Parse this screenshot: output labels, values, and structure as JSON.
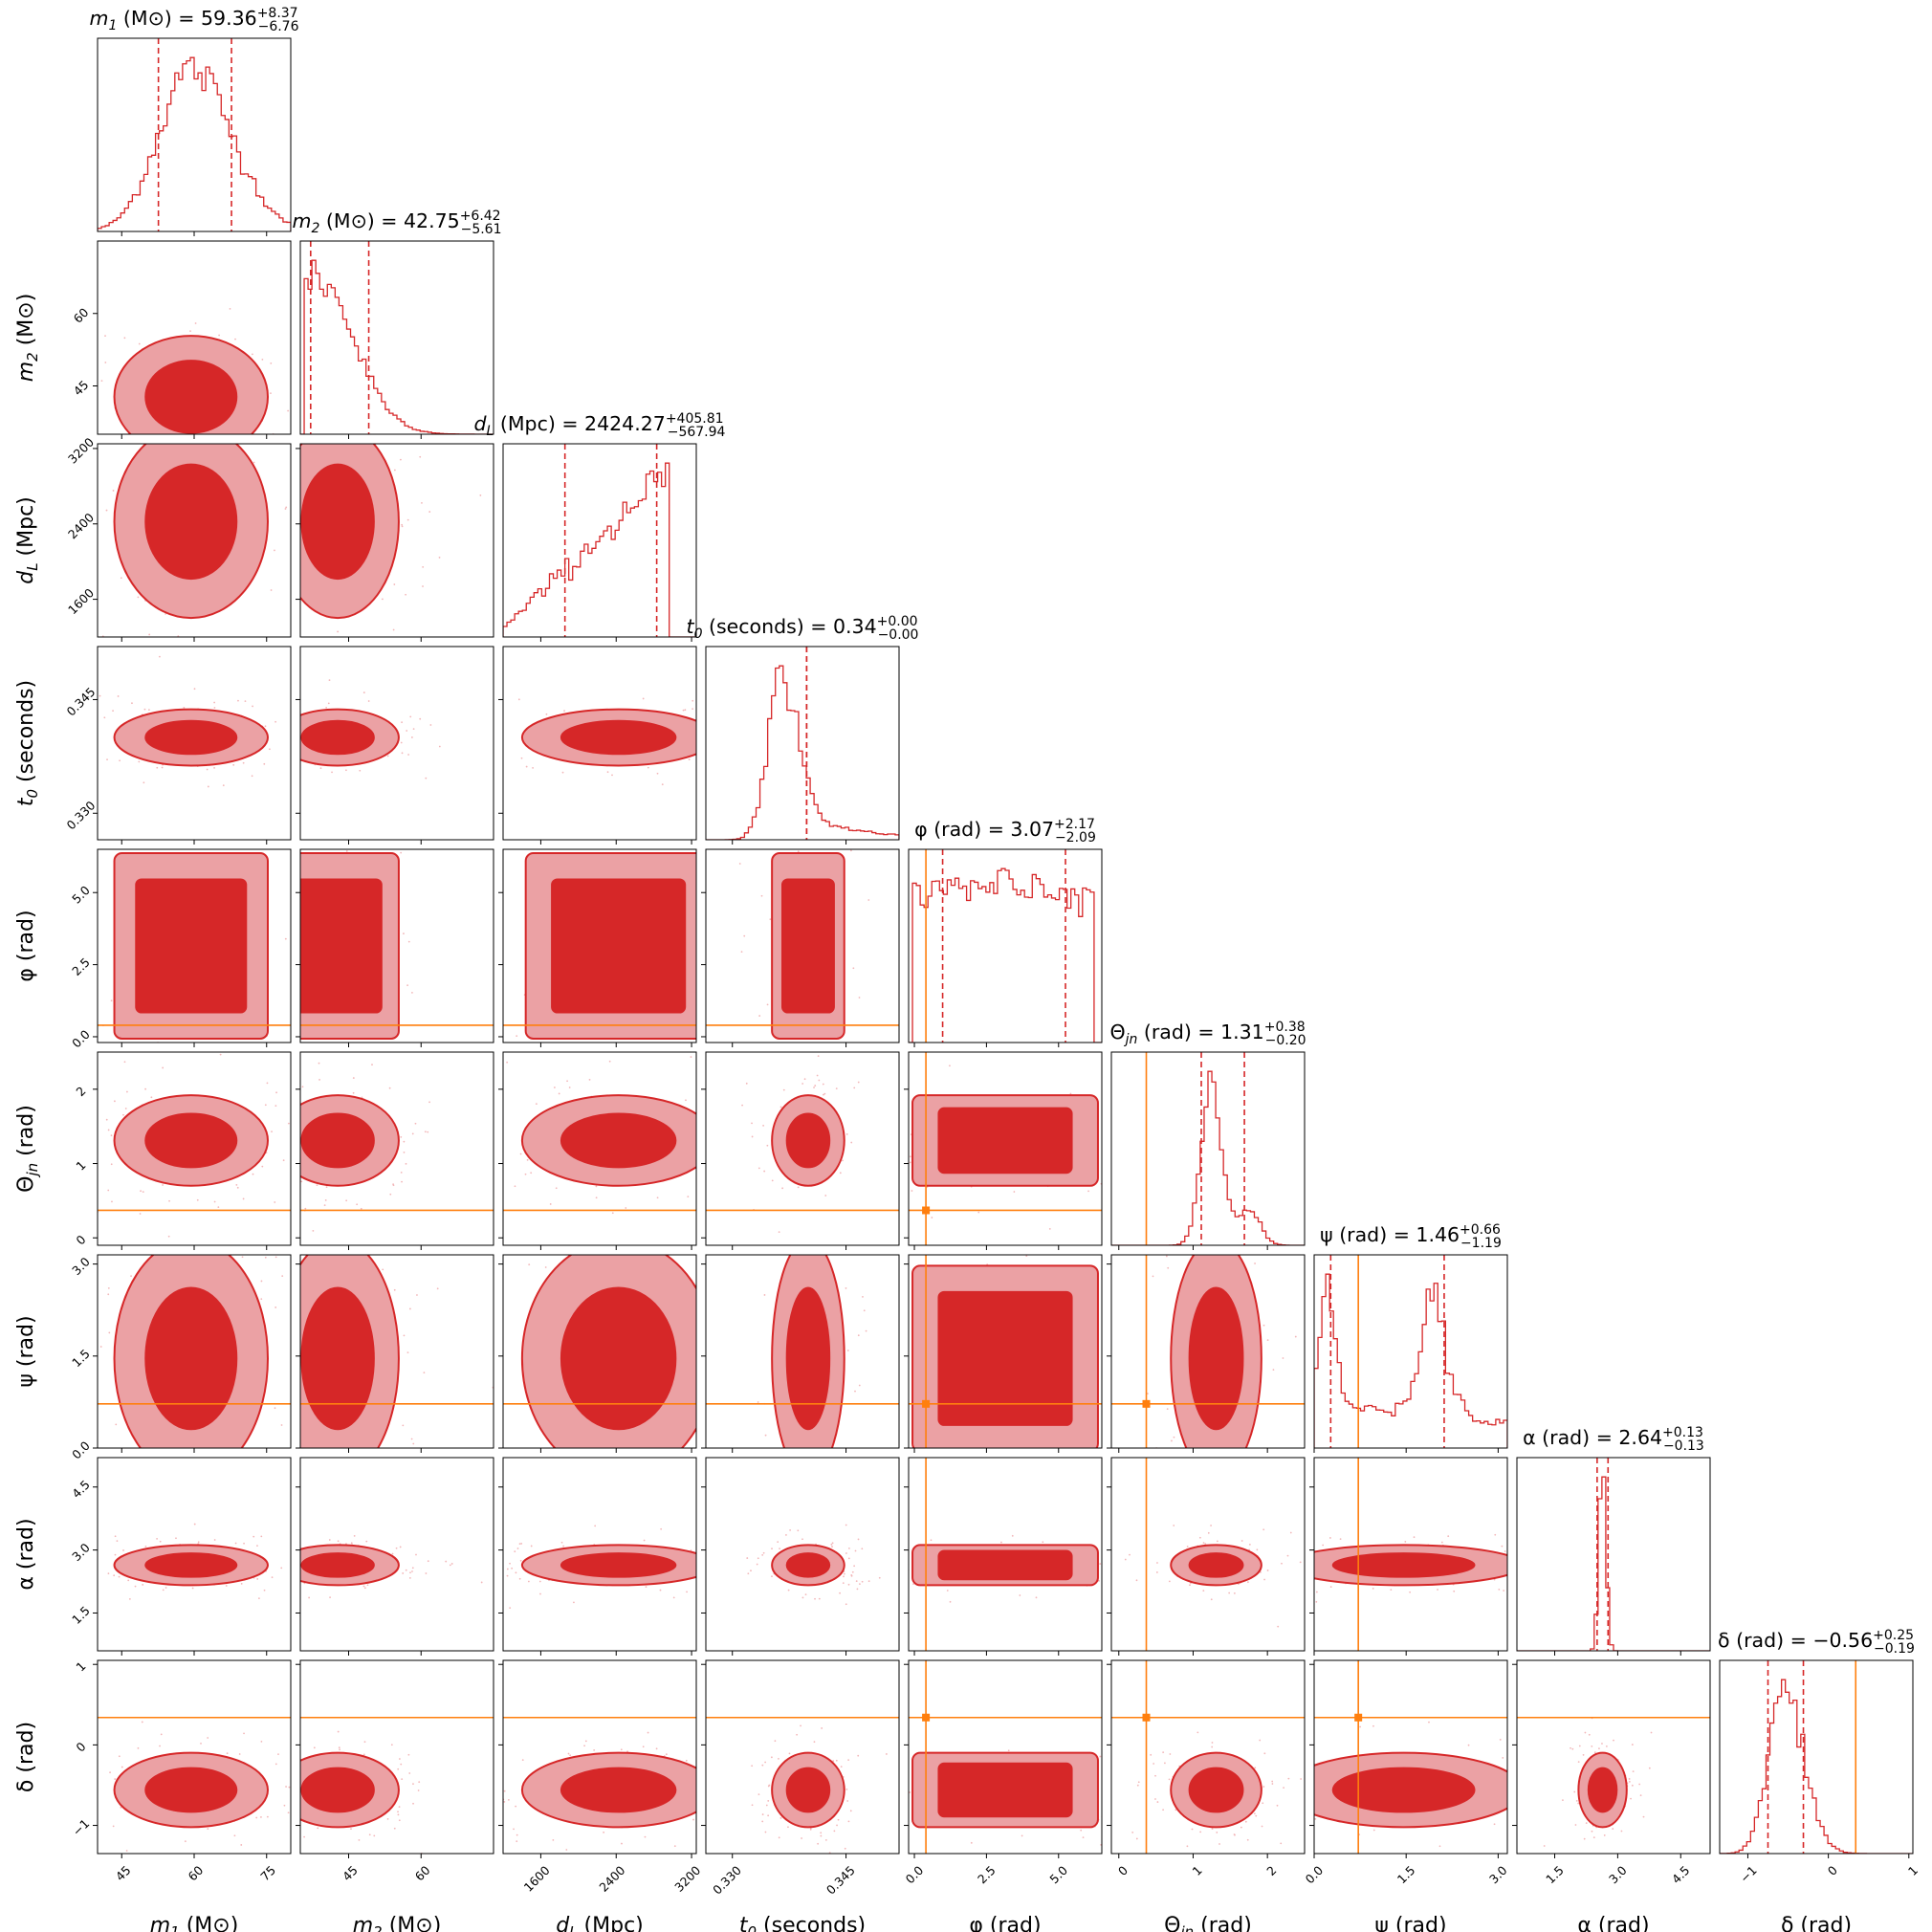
{
  "chart_data": {
    "type": "corner",
    "accent_color": "#d62728",
    "truth_color": "#ff7f0e",
    "parameters": [
      {
        "key": "m1",
        "label_sym": "m",
        "label_sub": "1",
        "label_unit": "(M⊙)",
        "median": 59.36,
        "plus": 8.37,
        "minus": 6.76,
        "title_value": "59.36",
        "title_plus": "+8.37",
        "title_minus": "−6.76",
        "range": [
          40,
          80
        ],
        "ticks": [
          45,
          60,
          75
        ],
        "tick_labels": [
          "45",
          "60",
          "75"
        ],
        "truth": null
      },
      {
        "key": "m2",
        "label_sym": "m",
        "label_sub": "2",
        "label_unit": "(M⊙)",
        "median": 42.75,
        "plus": 6.42,
        "minus": 5.61,
        "title_value": "42.75",
        "title_plus": "+6.42",
        "title_minus": "−5.61",
        "range": [
          35,
          75
        ],
        "ticks": [
          45,
          60
        ],
        "tick_labels": [
          "45",
          "60"
        ],
        "truth": null
      },
      {
        "key": "dL",
        "label_sym": "d",
        "label_sub": "L",
        "label_unit": "(Mpc)",
        "median": 2424.27,
        "plus": 405.81,
        "minus": 567.94,
        "title_value": "2424.27",
        "title_plus": "+405.81",
        "title_minus": "−567.94",
        "range": [
          1200,
          3250
        ],
        "ticks": [
          1600,
          2400,
          3200
        ],
        "tick_labels": [
          "1600",
          "2400",
          "3200"
        ],
        "truth": null
      },
      {
        "key": "t0",
        "label_sym": "t",
        "label_sub": "0",
        "label_unit": "(seconds)",
        "median": 0.34,
        "plus": 0.0,
        "minus": 0.0,
        "title_value": "0.34",
        "title_plus": "+0.00",
        "title_minus": "−0.00",
        "range": [
          0.3265,
          0.352
        ],
        "ticks": [
          0.33,
          0.345
        ],
        "tick_labels": [
          "0.330",
          "0.345"
        ],
        "truth": null
      },
      {
        "key": "phi",
        "label_sym": "φ",
        "label_sub": "",
        "label_unit": "(rad)",
        "median": 3.07,
        "plus": 2.17,
        "minus": 2.09,
        "title_value": "3.07",
        "title_plus": "+2.17",
        "title_minus": "−2.09",
        "range": [
          -0.2,
          6.5
        ],
        "ticks": [
          0.0,
          2.5,
          5.0
        ],
        "tick_labels": [
          "0.0",
          "2.5",
          "5.0"
        ],
        "truth": 0.4
      },
      {
        "key": "theta_jn",
        "label_sym": "Θ",
        "label_sub": "jn",
        "label_unit": "(rad)",
        "median": 1.31,
        "plus": 0.38,
        "minus": 0.2,
        "title_value": "1.31",
        "title_plus": "+0.38",
        "title_minus": "−0.20",
        "range": [
          -0.1,
          2.5
        ],
        "ticks": [
          0,
          1,
          2
        ],
        "tick_labels": [
          "0",
          "1",
          "2"
        ],
        "truth": 0.37
      },
      {
        "key": "psi",
        "label_sym": "ψ",
        "label_sub": "",
        "label_unit": "(rad)",
        "median": 1.46,
        "plus": 0.66,
        "minus": 1.19,
        "title_value": "1.46",
        "title_plus": "+0.66",
        "title_minus": "−1.19",
        "range": [
          0.0,
          3.15
        ],
        "ticks": [
          0.0,
          1.5,
          3.0
        ],
        "tick_labels": [
          "0.0",
          "1.5",
          "3.0"
        ],
        "truth": 0.72
      },
      {
        "key": "alpha",
        "label_sym": "α",
        "label_sub": "",
        "label_unit": "(rad)",
        "median": 2.64,
        "plus": 0.13,
        "minus": 0.13,
        "title_value": "2.64",
        "title_plus": "+0.13",
        "title_minus": "−0.13",
        "range": [
          0.6,
          5.2
        ],
        "ticks": [
          1.5,
          3.0,
          4.5
        ],
        "tick_labels": [
          "1.5",
          "3.0",
          "4.5"
        ],
        "truth": null
      },
      {
        "key": "delta",
        "label_sym": "δ",
        "label_sub": "",
        "label_unit": "(rad)",
        "median": -0.56,
        "plus": 0.25,
        "minus": 0.19,
        "title_value": "−0.56",
        "title_plus": "+0.25",
        "title_minus": "−0.19",
        "range": [
          -1.35,
          1.05
        ],
        "ticks": [
          -1,
          0,
          1
        ],
        "tick_labels": [
          "−1",
          "0",
          "1"
        ],
        "truth": 0.34
      }
    ]
  }
}
